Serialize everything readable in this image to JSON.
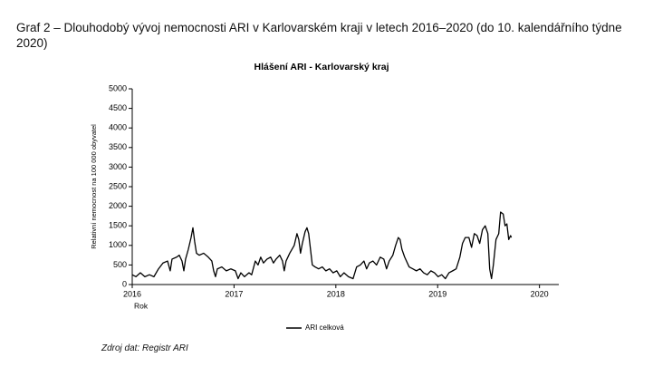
{
  "caption": "Graf 2 – Dlouhodobý vývoj nemocnosti ARI v Karlovarském kraji v letech 2016–2020 (do 10. kalendářního týdne 2020)",
  "source": "Zdroj dat: Registr ARI",
  "chart_data": {
    "type": "line",
    "title": "Hlášení ARI -  Karlovarský kraj",
    "y_label": "Relativní nemocnost na 100 000 obyvatel",
    "x_label": "Rok",
    "xlim": [
      2016,
      2020.19
    ],
    "xticks": [
      2016,
      2017,
      2018,
      2019,
      2020
    ],
    "ylim": [
      0,
      5000
    ],
    "yticks": [
      0,
      500,
      1000,
      1500,
      2000,
      2500,
      3000,
      3500,
      4000,
      4500,
      5000
    ],
    "grid": false,
    "legend": "bottom",
    "x": [
      2016,
      2016.036,
      2016.08,
      2016.124,
      2016.169,
      2016.213,
      2016.258,
      2016.302,
      2016.347,
      2016.373,
      2016.391,
      2016.436,
      2016.462,
      2016.489,
      2016.507,
      2016.524,
      2016.551,
      2016.578,
      2016.596,
      2016.613,
      2016.631,
      2016.658,
      2016.702,
      2016.747,
      2016.782,
      2016.8,
      2016.818,
      2016.836,
      2016.88,
      2016.924,
      2016.969,
      2017.013,
      2017.04,
      2017.067,
      2017.102,
      2017.147,
      2017.173,
      2017.209,
      2017.236,
      2017.262,
      2017.289,
      2017.324,
      2017.36,
      2017.387,
      2017.413,
      2017.449,
      2017.476,
      2017.493,
      2017.511,
      2017.547,
      2017.591,
      2017.618,
      2017.636,
      2017.653,
      2017.671,
      2017.698,
      2017.716,
      2017.733,
      2017.751,
      2017.769,
      2017.796,
      2017.831,
      2017.867,
      2017.902,
      2017.938,
      2017.973,
      2018.009,
      2018.044,
      2018.08,
      2018.124,
      2018.169,
      2018.204,
      2018.24,
      2018.276,
      2018.302,
      2018.329,
      2018.364,
      2018.4,
      2018.436,
      2018.471,
      2018.498,
      2018.524,
      2018.56,
      2018.587,
      2018.613,
      2018.631,
      2018.649,
      2018.676,
      2018.72,
      2018.756,
      2018.791,
      2018.827,
      2018.862,
      2018.898,
      2018.933,
      2018.969,
      2019.004,
      2019.04,
      2019.076,
      2019.111,
      2019.147,
      2019.182,
      2019.218,
      2019.244,
      2019.271,
      2019.307,
      2019.333,
      2019.36,
      2019.387,
      2019.413,
      2019.44,
      2019.467,
      2019.493,
      2019.511,
      2019.529,
      2019.547,
      2019.573,
      2019.6,
      2019.618,
      2019.644,
      2019.662,
      2019.68,
      2019.698,
      2019.716,
      2019.724
    ],
    "series": [
      {
        "name": "ARI celková",
        "color": "#000000",
        "values": [
          250,
          200,
          300,
          200,
          250,
          200,
          400,
          550,
          600,
          350,
          650,
          700,
          750,
          600,
          350,
          650,
          900,
          1200,
          1450,
          1100,
          800,
          750,
          800,
          700,
          600,
          350,
          200,
          400,
          450,
          350,
          400,
          350,
          150,
          300,
          200,
          300,
          250,
          600,
          500,
          700,
          550,
          650,
          700,
          550,
          650,
          750,
          600,
          350,
          600,
          800,
          1000,
          1300,
          1150,
          800,
          1050,
          1350,
          1450,
          1300,
          900,
          500,
          450,
          400,
          450,
          350,
          400,
          300,
          350,
          200,
          300,
          200,
          150,
          450,
          500,
          600,
          400,
          550,
          600,
          500,
          700,
          650,
          400,
          600,
          750,
          1000,
          1200,
          1150,
          900,
          700,
          450,
          400,
          350,
          400,
          300,
          250,
          350,
          300,
          200,
          250,
          150,
          300,
          350,
          400,
          700,
          1050,
          1200,
          1200,
          950,
          1300,
          1250,
          1050,
          1400,
          1500,
          1300,
          400,
          150,
          500,
          1150,
          1300,
          1850,
          1800,
          1500,
          1550,
          1150,
          1250,
          1200
        ]
      }
    ]
  }
}
